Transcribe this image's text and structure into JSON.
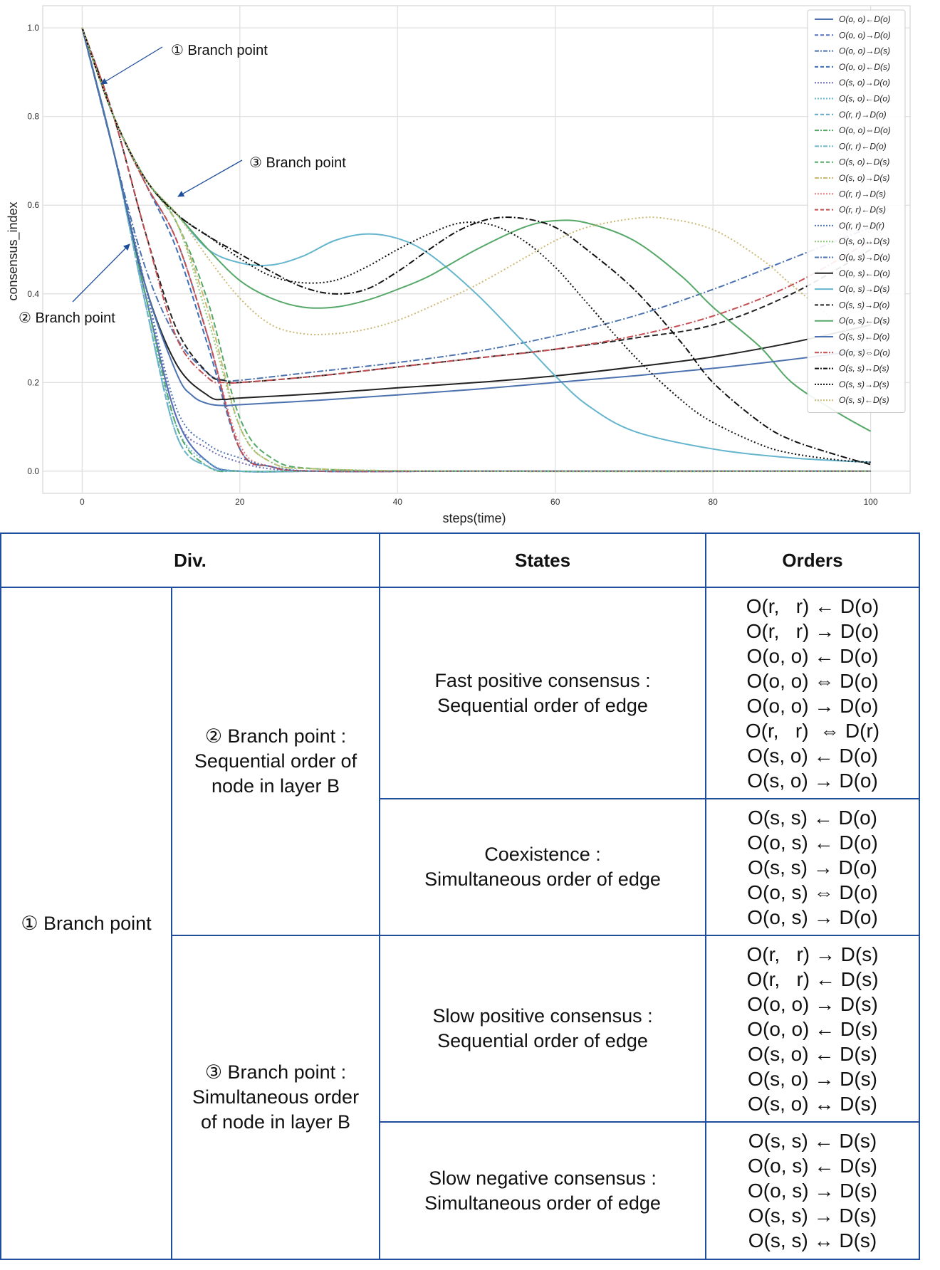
{
  "chart_data": {
    "type": "line",
    "xlabel": "steps(time)",
    "ylabel": "consensus_index",
    "xlim": [
      -5,
      105
    ],
    "ylim": [
      -0.05,
      1.05
    ],
    "x_ticks": [
      0,
      20,
      40,
      60,
      80,
      100
    ],
    "y_ticks": [
      0.0,
      0.2,
      0.4,
      0.6,
      0.8,
      1.0
    ],
    "grid": true,
    "legend_placement": "top-right",
    "annotations": [
      {
        "text": "① Branch point",
        "x": 2.5,
        "y": 0.87
      },
      {
        "text": "② Branch point",
        "x": 6,
        "y": 0.51
      },
      {
        "text": "③ Branch point",
        "x": 12,
        "y": 0.62
      }
    ],
    "series": [
      {
        "name": "O(o, o)←D(o)",
        "color": "#4c72b0",
        "dash": "solid",
        "x": [
          0,
          4,
          8,
          12,
          16,
          20,
          30,
          50,
          70,
          100
        ],
        "y": [
          1,
          0.72,
          0.4,
          0.12,
          0.02,
          0.0,
          0,
          0,
          0,
          0
        ]
      },
      {
        "name": "O(o, o)→D(o)",
        "color": "#5a6fc0",
        "dash": "dashed",
        "x": [
          0,
          4,
          8,
          12,
          16,
          20,
          30,
          50,
          70,
          100
        ],
        "y": [
          1,
          0.72,
          0.4,
          0.12,
          0.02,
          0.0,
          0,
          0,
          0,
          0
        ]
      },
      {
        "name": "O(o, o)→D(s)",
        "color": "#4c72b0",
        "dashdot": true,
        "dash": "dashdot",
        "x": [
          0,
          4,
          8,
          12,
          16,
          20,
          24,
          30,
          50,
          100
        ],
        "y": [
          1,
          0.8,
          0.65,
          0.52,
          0.3,
          0.05,
          0.01,
          0,
          0,
          0
        ]
      },
      {
        "name": "O(o, o)←D(s)",
        "color": "#3b6fb6",
        "dash": "dashed",
        "x": [
          0,
          4,
          8,
          12,
          16,
          20,
          24,
          30,
          50,
          100
        ],
        "y": [
          1,
          0.8,
          0.65,
          0.5,
          0.28,
          0.05,
          0.01,
          0,
          0,
          0
        ]
      },
      {
        "name": "O(s, o)→D(o)",
        "color": "#6b6bb8",
        "dash": "dotted",
        "x": [
          0,
          4,
          8,
          12,
          16,
          20,
          24,
          30,
          50,
          100
        ],
        "y": [
          1,
          0.72,
          0.42,
          0.12,
          0.05,
          0.02,
          0.005,
          0,
          0,
          0
        ]
      },
      {
        "name": "O(s, o)←D(o)",
        "color": "#64b5cd",
        "dash": "dotted",
        "x": [
          0,
          4,
          8,
          12,
          16,
          20,
          30,
          50,
          70,
          100
        ],
        "y": [
          1,
          0.72,
          0.38,
          0.1,
          0.02,
          0.0,
          0,
          0,
          0,
          0
        ]
      },
      {
        "name": "O(r, r)→D(o)",
        "color": "#5fa8c9",
        "dash": "dashed",
        "x": [
          0,
          4,
          8,
          12,
          16,
          20,
          30,
          50,
          70,
          100
        ],
        "y": [
          1,
          0.72,
          0.38,
          0.08,
          0.01,
          0.0,
          0,
          0,
          0,
          0
        ]
      },
      {
        "name": "O(o, o)⇔D(o)",
        "color": "#55a868",
        "dash": "dashdot",
        "x": [
          0,
          4,
          8,
          12,
          16,
          20,
          30,
          50,
          70,
          100
        ],
        "y": [
          1,
          0.72,
          0.4,
          0.1,
          0.01,
          0.0,
          0,
          0,
          0,
          0
        ]
      },
      {
        "name": "O(r, r)←D(o)",
        "color": "#6cb6c8",
        "dash": "dashdot",
        "x": [
          0,
          4,
          8,
          12,
          16,
          20,
          30,
          50,
          70,
          100
        ],
        "y": [
          1,
          0.72,
          0.38,
          0.08,
          0.01,
          0.0,
          0,
          0,
          0,
          0
        ]
      },
      {
        "name": "O(s, o)←D(s)",
        "color": "#55a868",
        "dash": "dashed",
        "x": [
          0,
          4,
          8,
          12,
          16,
          20,
          24,
          30,
          50,
          100
        ],
        "y": [
          1,
          0.8,
          0.66,
          0.56,
          0.38,
          0.12,
          0.03,
          0.005,
          0,
          0
        ]
      },
      {
        "name": "O(s, o)→D(s)",
        "color": "#ccb974",
        "dash": "dashdot",
        "x": [
          0,
          4,
          8,
          12,
          16,
          20,
          24,
          30,
          50,
          100
        ],
        "y": [
          1,
          0.8,
          0.66,
          0.56,
          0.36,
          0.1,
          0.02,
          0.005,
          0,
          0
        ]
      },
      {
        "name": "O(r, r)→D(s)",
        "color": "#e07b7b",
        "dash": "dotted",
        "x": [
          0,
          4,
          8,
          12,
          16,
          20,
          24,
          30,
          50,
          100
        ],
        "y": [
          1,
          0.8,
          0.65,
          0.52,
          0.3,
          0.06,
          0.01,
          0,
          0,
          0
        ]
      },
      {
        "name": "O(r, r)←D(s)",
        "color": "#c44e52",
        "dash": "dashed",
        "x": [
          0,
          4,
          8,
          12,
          16,
          20,
          24,
          30,
          50,
          100
        ],
        "y": [
          1,
          0.8,
          0.65,
          0.52,
          0.3,
          0.05,
          0.01,
          0,
          0,
          0
        ]
      },
      {
        "name": "O(r, r)⇔D(r)",
        "color": "#4c72b0",
        "dash": "dotted",
        "x": [
          0,
          4,
          8,
          12,
          16,
          20,
          24,
          30,
          50,
          100
        ],
        "y": [
          1,
          0.72,
          0.42,
          0.14,
          0.06,
          0.03,
          0.01,
          0,
          0,
          0
        ]
      },
      {
        "name": "O(s, o)↔D(s)",
        "color": "#8dc779",
        "dash": "dotted",
        "x": [
          0,
          4,
          8,
          12,
          16,
          20,
          24,
          30,
          50,
          100
        ],
        "y": [
          1,
          0.8,
          0.66,
          0.56,
          0.34,
          0.1,
          0.02,
          0.005,
          0,
          0
        ]
      },
      {
        "name": "O(o, s)→D(o)",
        "color": "#4c72b0",
        "dash": "dashdot",
        "x": [
          0,
          4,
          8,
          12,
          16,
          18,
          20,
          30,
          40,
          50,
          60,
          70,
          80,
          90,
          100
        ],
        "y": [
          1,
          0.72,
          0.46,
          0.3,
          0.22,
          0.205,
          0.205,
          0.225,
          0.245,
          0.27,
          0.305,
          0.35,
          0.41,
          0.48,
          0.55
        ]
      },
      {
        "name": "O(o, s)←D(o)",
        "color": "#222222",
        "dash": "solid",
        "x": [
          0,
          4,
          8,
          12,
          16,
          18,
          20,
          30,
          40,
          50,
          60,
          70,
          80,
          90,
          100
        ],
        "y": [
          1,
          0.72,
          0.42,
          0.24,
          0.17,
          0.162,
          0.165,
          0.175,
          0.188,
          0.2,
          0.215,
          0.235,
          0.258,
          0.29,
          0.33
        ]
      },
      {
        "name": "O(o, s)→D(s)",
        "color": "#64b5cd",
        "dash": "solid",
        "x": [
          0,
          4,
          8,
          12,
          16,
          20,
          24,
          28,
          32,
          36,
          40,
          44,
          50,
          56,
          60,
          64,
          70,
          80,
          90,
          100
        ],
        "y": [
          1,
          0.8,
          0.66,
          0.58,
          0.5,
          0.47,
          0.465,
          0.485,
          0.52,
          0.535,
          0.525,
          0.49,
          0.4,
          0.29,
          0.215,
          0.15,
          0.09,
          0.05,
          0.03,
          0.02
        ]
      },
      {
        "name": "O(s, s)→D(o)",
        "color": "#222222",
        "dash": "dashed",
        "x": [
          0,
          4,
          8,
          12,
          16,
          18,
          20,
          30,
          40,
          50,
          60,
          70,
          80,
          90,
          100
        ],
        "y": [
          1,
          0.8,
          0.54,
          0.32,
          0.22,
          0.205,
          0.2,
          0.215,
          0.235,
          0.255,
          0.275,
          0.3,
          0.33,
          0.4,
          0.5
        ]
      },
      {
        "name": "O(o, s)←D(s)",
        "color": "#55a868",
        "dash": "solid",
        "x": [
          0,
          4,
          8,
          12,
          16,
          20,
          24,
          28,
          32,
          36,
          40,
          44,
          50,
          56,
          60,
          64,
          70,
          76,
          80,
          86,
          90,
          96,
          100
        ],
        "y": [
          1,
          0.8,
          0.66,
          0.58,
          0.5,
          0.43,
          0.39,
          0.37,
          0.37,
          0.385,
          0.41,
          0.44,
          0.5,
          0.55,
          0.565,
          0.56,
          0.52,
          0.44,
          0.37,
          0.28,
          0.2,
          0.13,
          0.09
        ]
      },
      {
        "name": "O(s, s)←D(o)",
        "color": "#4c72b0",
        "dash": "solid",
        "x": [
          0,
          4,
          8,
          12,
          14,
          16,
          18,
          20,
          30,
          40,
          50,
          60,
          70,
          80,
          90,
          100
        ],
        "y": [
          1,
          0.72,
          0.42,
          0.22,
          0.17,
          0.152,
          0.148,
          0.15,
          0.16,
          0.172,
          0.185,
          0.2,
          0.215,
          0.232,
          0.252,
          0.275
        ]
      },
      {
        "name": "O(o, s)⇔D(o)",
        "color": "#c44e52",
        "dash": "dashdot",
        "x": [
          0,
          4,
          8,
          12,
          16,
          18,
          20,
          30,
          40,
          50,
          60,
          70,
          80,
          90,
          100
        ],
        "y": [
          1,
          0.8,
          0.54,
          0.3,
          0.21,
          0.2,
          0.2,
          0.215,
          0.235,
          0.255,
          0.275,
          0.305,
          0.35,
          0.42,
          0.52
        ]
      },
      {
        "name": "O(s, s)↔D(s)",
        "color": "#111111",
        "dash": "dashdot",
        "x": [
          0,
          4,
          8,
          12,
          16,
          20,
          24,
          28,
          32,
          36,
          40,
          44,
          48,
          52,
          56,
          60,
          64,
          70,
          76,
          80,
          86,
          90,
          96,
          100
        ],
        "y": [
          1,
          0.8,
          0.66,
          0.58,
          0.53,
          0.49,
          0.45,
          0.415,
          0.4,
          0.41,
          0.45,
          0.5,
          0.545,
          0.57,
          0.57,
          0.55,
          0.5,
          0.41,
          0.29,
          0.2,
          0.11,
          0.07,
          0.035,
          0.015
        ]
      },
      {
        "name": "O(s, s)→D(s)",
        "color": "#111111",
        "dash": "dotted",
        "x": [
          0,
          4,
          8,
          12,
          16,
          20,
          24,
          28,
          32,
          36,
          40,
          44,
          48,
          52,
          56,
          60,
          64,
          70,
          76,
          80,
          86,
          90,
          96,
          100
        ],
        "y": [
          1,
          0.8,
          0.66,
          0.58,
          0.53,
          0.48,
          0.44,
          0.425,
          0.43,
          0.46,
          0.5,
          0.535,
          0.56,
          0.555,
          0.52,
          0.46,
          0.38,
          0.26,
          0.16,
          0.11,
          0.06,
          0.04,
          0.025,
          0.02
        ]
      },
      {
        "name": "O(s, s)←D(s)",
        "color": "#ccb974",
        "dash": "dotted",
        "x": [
          0,
          4,
          8,
          12,
          16,
          20,
          24,
          28,
          32,
          36,
          40,
          44,
          50,
          56,
          60,
          64,
          70,
          74,
          80,
          86,
          90,
          96,
          100
        ],
        "y": [
          1,
          0.8,
          0.66,
          0.58,
          0.48,
          0.39,
          0.33,
          0.31,
          0.31,
          0.32,
          0.34,
          0.37,
          0.42,
          0.48,
          0.52,
          0.55,
          0.57,
          0.57,
          0.545,
          0.48,
          0.42,
          0.33,
          0.26
        ]
      }
    ]
  },
  "table": {
    "headers": {
      "div": "Div.",
      "states": "States",
      "orders": "Orders"
    },
    "branch1": "① Branch point",
    "branch2": "② Branch point :\nSequential order of\nnode in layer B",
    "branch3": "③ Branch point :\nSimultaneous order\nof node in layer B",
    "rows": [
      {
        "state": "Fast positive consensus :\nSequential order of edge",
        "orders": "O(r,   r) ← D(o)\nO(r,   r) → D(o)\nO(o, o) ← D(o)\nO(o, o) ⇔ D(o)\nO(o, o) → D(o)\nO(r,   r)  ⇔ D(r)\nO(s, o) ← D(o)\nO(s, o) → D(o)"
      },
      {
        "state": "Coexistence :\nSimultaneous order of edge",
        "orders": "O(s, s) ← D(o)\nO(o, s) ← D(o)\nO(s, s) → D(o)\nO(o, s) ⇔ D(o)\nO(o, s) → D(o)"
      },
      {
        "state": "Slow positive consensus :\nSequential order of edge",
        "orders": "O(r,   r) → D(s)\nO(r,   r) ← D(s)\nO(o, o) → D(s)\nO(o, o) ← D(s)\nO(s, o) ← D(s)\nO(s, o) → D(s)\nO(s, o) ↔ D(s)"
      },
      {
        "state": "Slow negative consensus :\nSimultaneous order of edge",
        "orders": "O(s, s) ← D(s)\nO(o, s) ← D(s)\nO(o, s) → D(s)\nO(s, s) → D(s)\nO(s, s) ↔ D(s)"
      }
    ]
  }
}
